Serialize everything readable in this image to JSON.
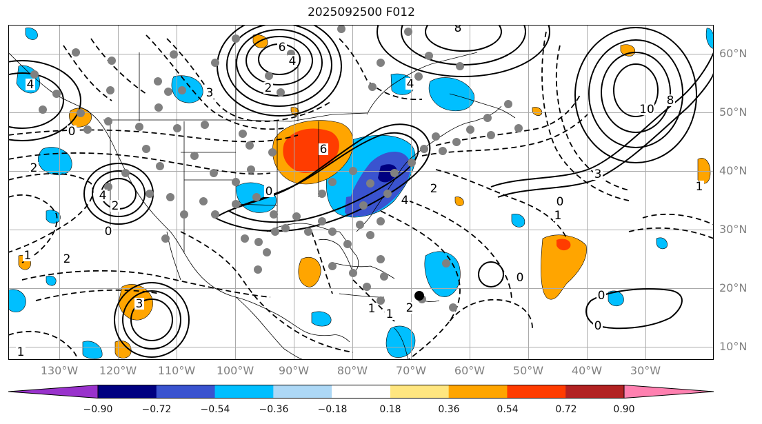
{
  "title": "2025092500 F012",
  "lon_labels": [
    "130°W",
    "120°W",
    "110°W",
    "100°W",
    "90°W",
    "80°W",
    "70°W",
    "60°W",
    "50°W",
    "40°W",
    "30°W"
  ],
  "lat_labels": [
    "60°N",
    "50°N",
    "40°N",
    "30°N",
    "20°N",
    "10°N"
  ],
  "colorbar": {
    "ticks": [
      "−0.90",
      "−0.72",
      "−0.54",
      "−0.36",
      "−0.18",
      "0.18",
      "0.36",
      "0.54",
      "0.72",
      "0.90"
    ],
    "colors": [
      "#9932cc",
      "#000080",
      "#3a53cf",
      "#00bfff",
      "#add8f6",
      "#ffffff",
      "#ffe680",
      "#ffa500",
      "#ff3c00",
      "#b22222",
      "#ff80b0"
    ]
  },
  "contour_labels": [
    {
      "text": "6"
    },
    {
      "text": "4"
    },
    {
      "text": "2"
    },
    {
      "text": "10"
    },
    {
      "text": "8"
    },
    {
      "text": "4"
    },
    {
      "text": "6"
    },
    {
      "text": "0"
    },
    {
      "text": "2"
    },
    {
      "text": "4"
    },
    {
      "text": "2"
    },
    {
      "text": "3"
    },
    {
      "text": "1"
    },
    {
      "text": "0"
    },
    {
      "text": "0"
    },
    {
      "text": "1"
    },
    {
      "text": "1"
    },
    {
      "text": "2"
    },
    {
      "text": "4"
    },
    {
      "text": "2"
    },
    {
      "text": "1"
    },
    {
      "text": "0"
    },
    {
      "text": "3"
    },
    {
      "text": "1"
    },
    {
      "text": "0"
    },
    {
      "text": "0"
    },
    {
      "text": "1"
    },
    {
      "text": "2"
    },
    {
      "text": "0"
    },
    {
      "text": "3"
    },
    {
      "text": "4"
    },
    {
      "text": "8"
    }
  ]
}
